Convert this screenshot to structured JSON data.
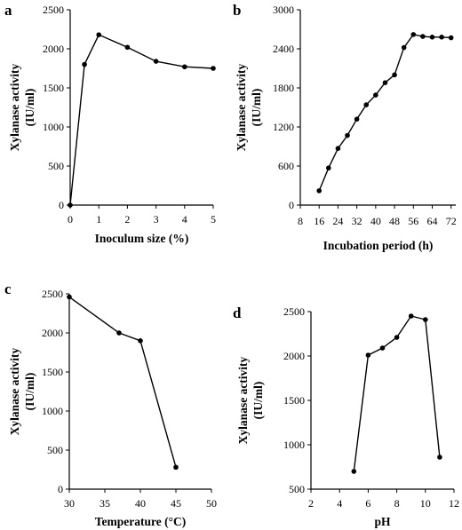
{
  "chart_data": [
    {
      "panel": "a",
      "type": "line",
      "xlabel": "Inoculum size (%)",
      "ylabel": [
        "Xylanase activity",
        "(IU/ml)"
      ],
      "xlim": [
        0,
        5
      ],
      "ylim": [
        0,
        2500
      ],
      "xticks": [
        0,
        1,
        2,
        3,
        4,
        5
      ],
      "yticks": [
        0,
        500,
        1000,
        1500,
        2000,
        2500
      ],
      "x": [
        0,
        0.5,
        1,
        2,
        3,
        4,
        5
      ],
      "y": [
        0,
        1800,
        2180,
        2020,
        1840,
        1770,
        1750
      ],
      "grid": false
    },
    {
      "panel": "b",
      "type": "line",
      "xlabel": "Incubation period (h)",
      "ylabel": [
        "Xylanase activity",
        "(IU/ml)"
      ],
      "xlim": [
        8,
        74
      ],
      "ylim": [
        0,
        3000
      ],
      "xticks": [
        8,
        16,
        24,
        32,
        40,
        48,
        56,
        64,
        72
      ],
      "yticks": [
        0,
        600,
        1200,
        1800,
        2400,
        3000
      ],
      "x": [
        16,
        20,
        24,
        28,
        32,
        36,
        40,
        44,
        48,
        52,
        56,
        60,
        64,
        68,
        72
      ],
      "y": [
        220,
        570,
        870,
        1070,
        1320,
        1540,
        1690,
        1880,
        2000,
        2420,
        2620,
        2590,
        2580,
        2580,
        2570
      ],
      "grid": false
    },
    {
      "panel": "c",
      "type": "line",
      "xlabel": "Temperature (°C)",
      "ylabel": [
        "Xylanase activity",
        "(IU/ml)"
      ],
      "xlim": [
        30,
        50
      ],
      "ylim": [
        0,
        2500
      ],
      "xticks": [
        30,
        35,
        40,
        45,
        50
      ],
      "yticks": [
        0,
        500,
        1000,
        1500,
        2000,
        2500
      ],
      "x": [
        30,
        37,
        40,
        45
      ],
      "y": [
        2460,
        2000,
        1900,
        280
      ],
      "grid": false
    },
    {
      "panel": "d",
      "type": "line",
      "xlabel": "pH",
      "ylabel": [
        "Xylanase activity",
        "(IU/ml)"
      ],
      "xlim": [
        2,
        12
      ],
      "ylim": [
        500,
        2500
      ],
      "xticks": [
        2,
        4,
        6,
        8,
        10,
        12
      ],
      "yticks": [
        500,
        1000,
        1500,
        2000,
        2500
      ],
      "x": [
        5,
        6,
        7,
        8,
        9,
        10,
        11
      ],
      "y": [
        700,
        2010,
        2090,
        2210,
        2450,
        2410,
        860
      ],
      "grid": false
    }
  ]
}
